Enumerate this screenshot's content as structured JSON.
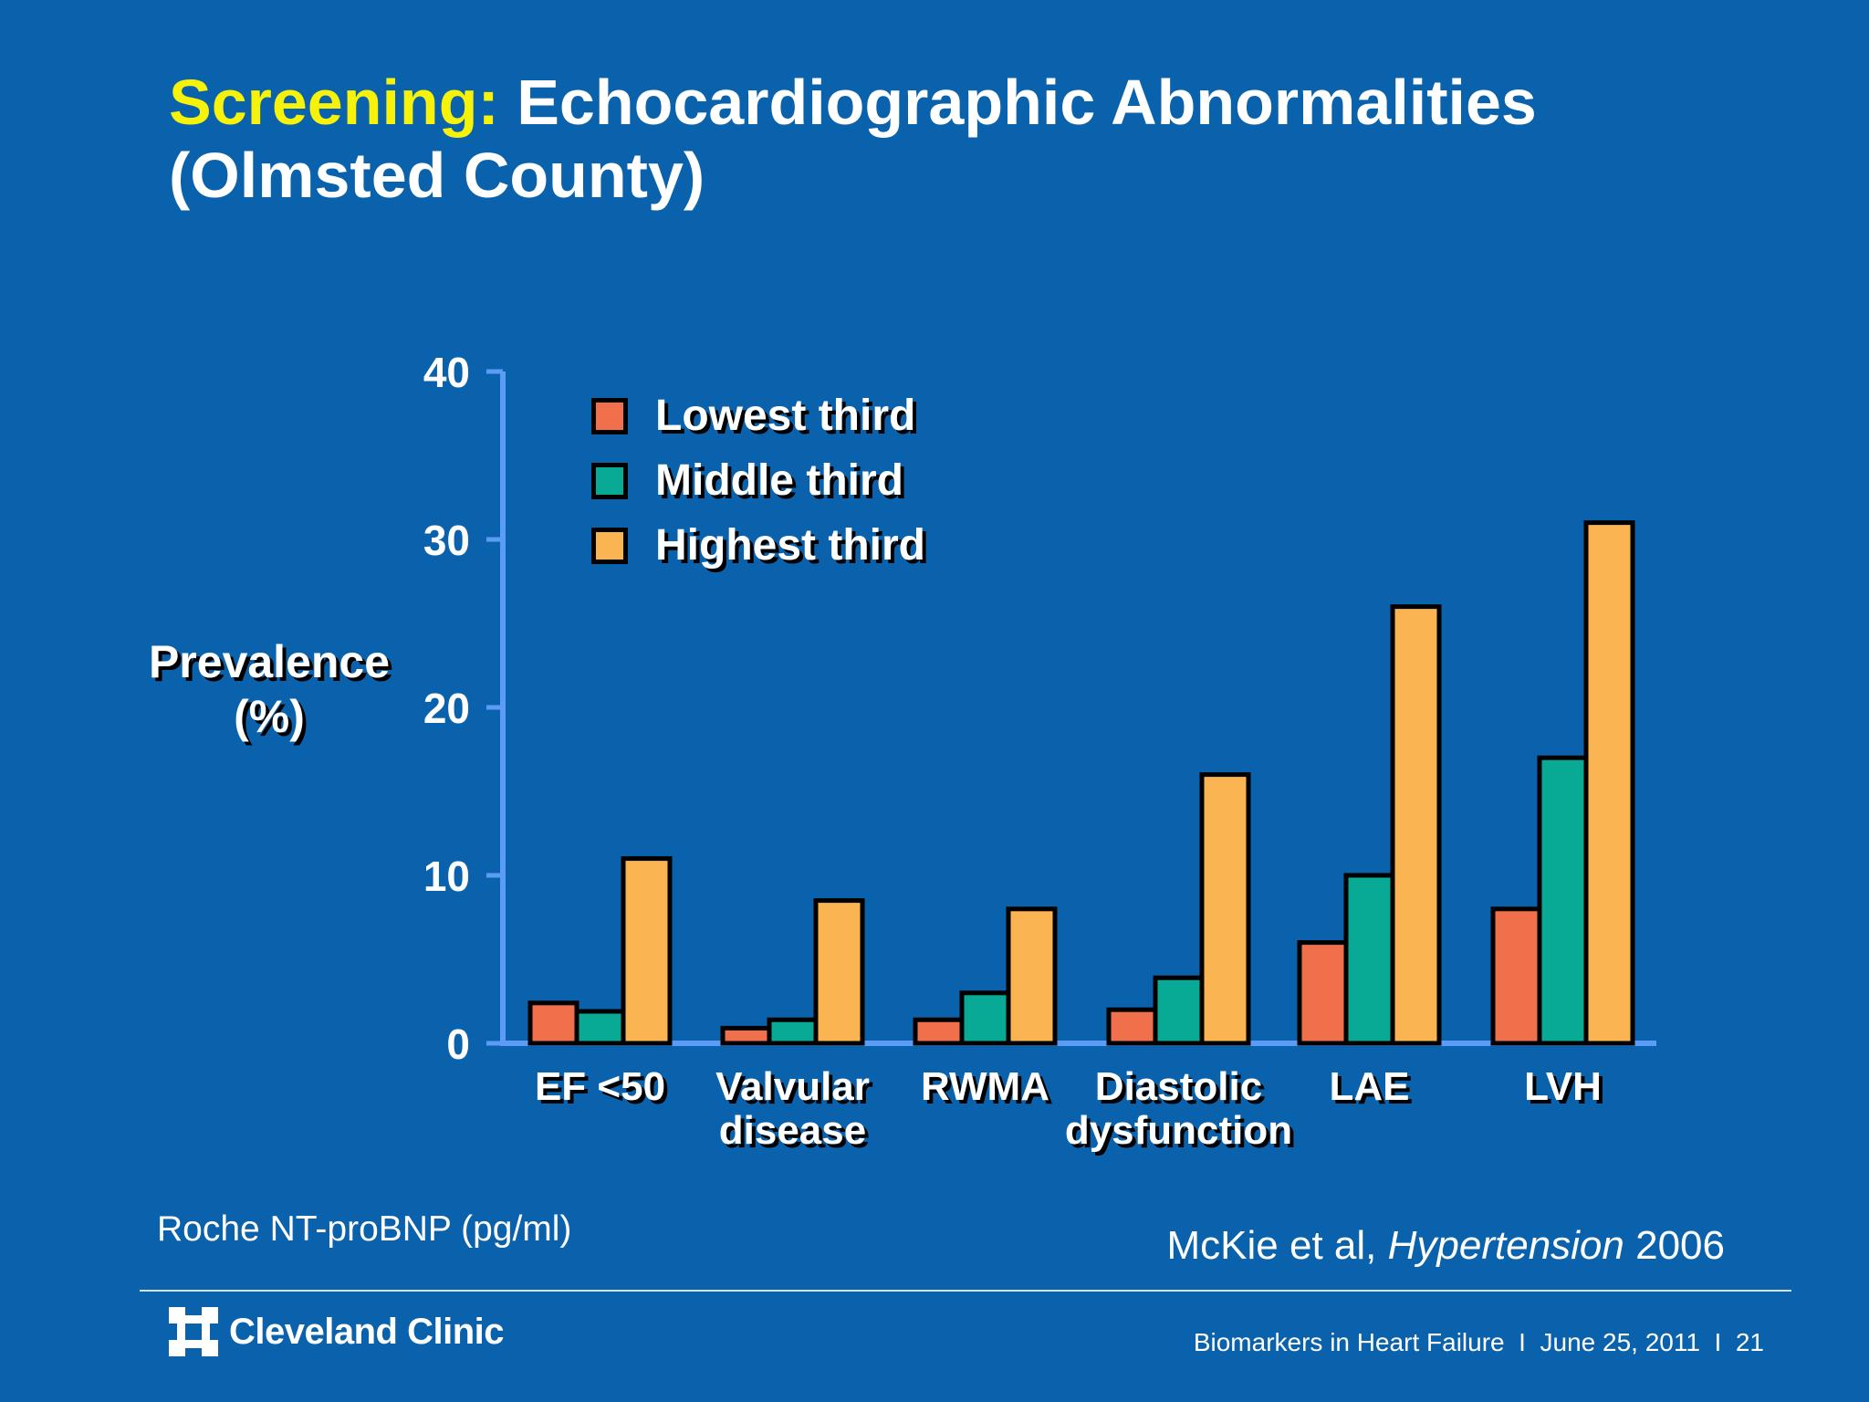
{
  "slide": {
    "title_accent": "Screening:",
    "title_line1": " Echocardiographic Abnormalities",
    "title_line2": "(Olmsted County)",
    "footnote": "Roche NT-proBNP (pg/ml)",
    "citation_authors": "McKie et al, ",
    "citation_journal": "Hypertension",
    "citation_year": " 2006",
    "logo_text": "Cleveland Clinic",
    "footer_topic": "Biomarkers in Heart Failure",
    "footer_sep": "  I  ",
    "footer_date": "June 25, 2011",
    "footer_page": "21"
  },
  "colors": {
    "background": "#0b62ac",
    "axis": "#5b9cf6",
    "lowest": "#f0704c",
    "middle": "#08aa96",
    "highest": "#fbb452"
  },
  "chart_data": {
    "type": "bar",
    "title": "Screening: Echocardiographic Abnormalities (Olmsted County)",
    "ylabel_lines": [
      "Prevalence",
      "(%)"
    ],
    "ylim": [
      0,
      40
    ],
    "yticks": [
      0,
      10,
      20,
      30,
      40
    ],
    "grid": false,
    "legend_position": "top-left",
    "categories": [
      [
        "EF <50"
      ],
      [
        "Valvular",
        "disease"
      ],
      [
        "RWMA"
      ],
      [
        "Diastolic",
        "dysfunction"
      ],
      [
        "LAE"
      ],
      [
        "LVH"
      ]
    ],
    "series": [
      {
        "name": "Lowest third",
        "color": "#f0704c",
        "values": [
          2.4,
          0.9,
          1.4,
          2.0,
          6.0,
          8.0
        ]
      },
      {
        "name": "Middle third",
        "color": "#08aa96",
        "values": [
          1.9,
          1.4,
          3.0,
          3.9,
          10.0,
          17.0
        ]
      },
      {
        "name": "Highest third",
        "color": "#fbb452",
        "values": [
          11.0,
          8.5,
          8.0,
          16.0,
          26.0,
          31.0
        ]
      }
    ]
  }
}
